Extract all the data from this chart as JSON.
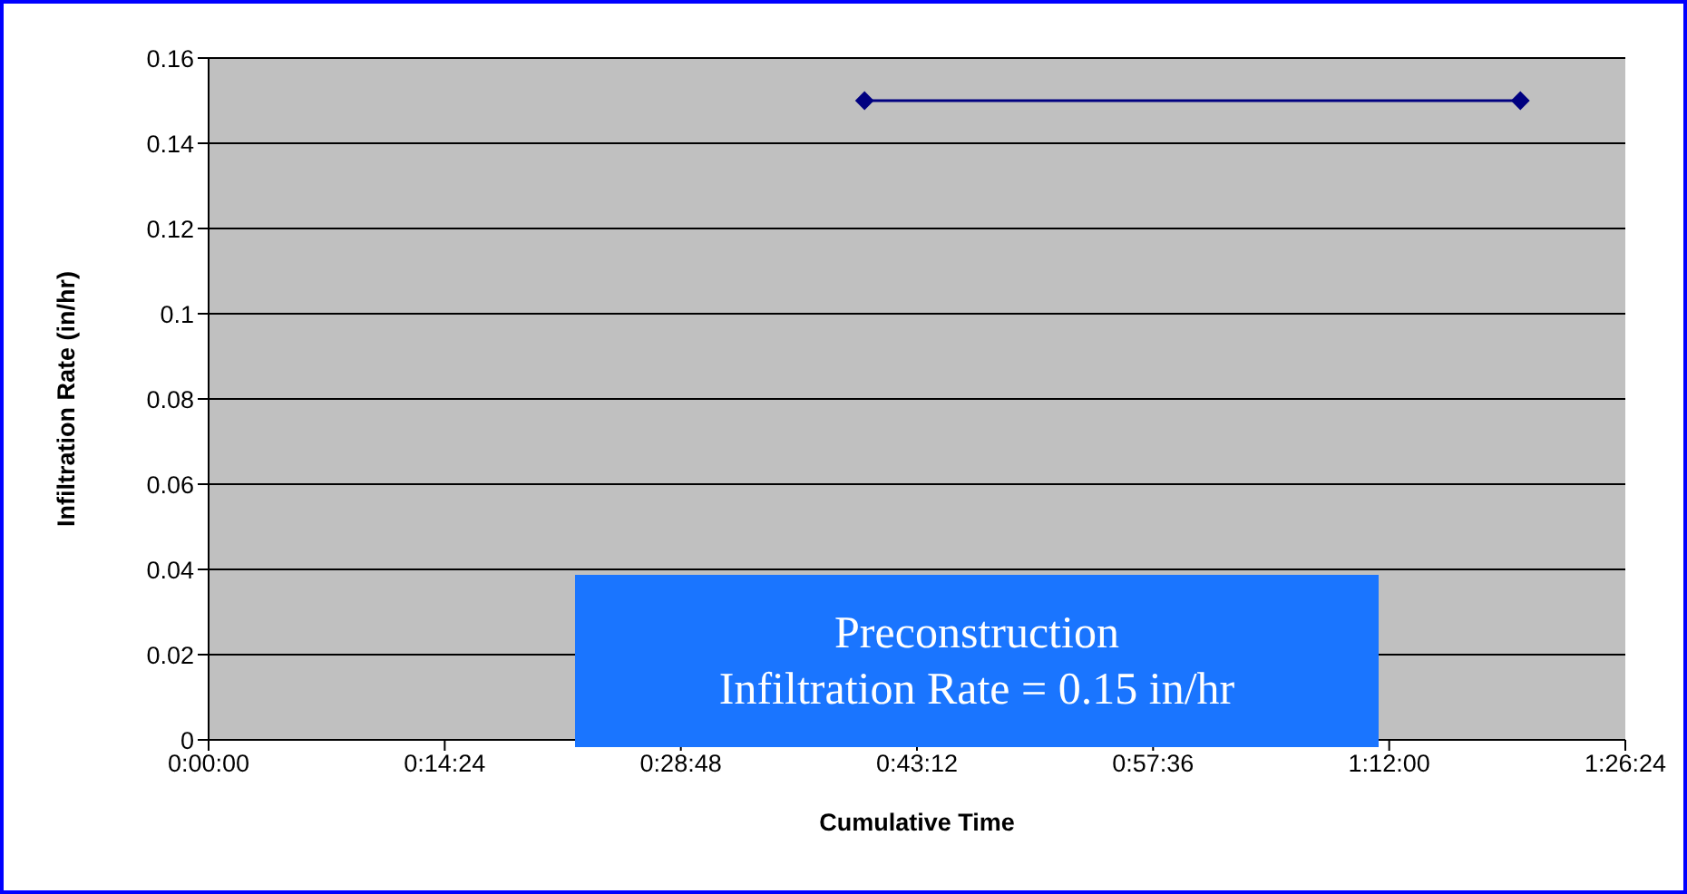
{
  "chart_data": {
    "type": "line",
    "xlabel": "Cumulative Time",
    "ylabel": "Infiltration Rate (in/hr)",
    "x": [
      0.6667,
      1.3333
    ],
    "series": [
      {
        "color": "#000080",
        "values": [
          0.15,
          0.15
        ]
      }
    ],
    "xlim": [
      0,
      1.44
    ],
    "xticks": [
      {
        "value": 0,
        "label": "0:00:00"
      },
      {
        "value": 0.24,
        "label": "0:14:24"
      },
      {
        "value": 0.48,
        "label": "0:28:48"
      },
      {
        "value": 0.72,
        "label": "0:43:12"
      },
      {
        "value": 0.96,
        "label": "0:57:36"
      },
      {
        "value": 1.2,
        "label": "1:12:00"
      },
      {
        "value": 1.44,
        "label": "1:26:24"
      }
    ],
    "ylim": [
      0,
      0.16
    ],
    "yticks": [
      0,
      0.02,
      0.04,
      0.06,
      0.08,
      0.1,
      0.12,
      0.14,
      0.16
    ],
    "grid": "y",
    "marker": "diamond",
    "line_style": "solid",
    "annotations": [
      "Preconstruction\nInfiltration Rate = 0.15 in/hr"
    ]
  }
}
